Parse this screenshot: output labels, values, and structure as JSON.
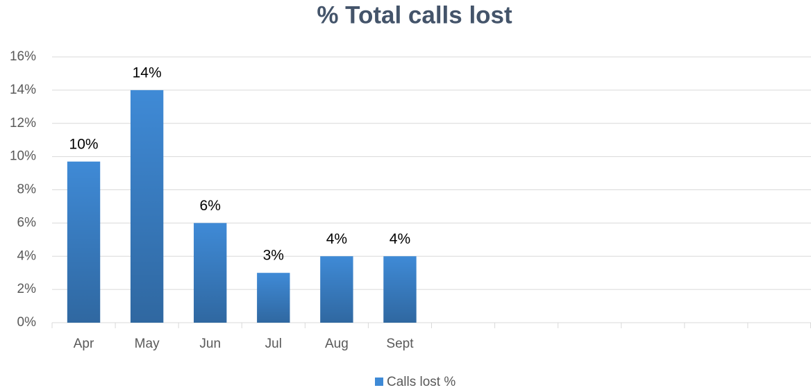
{
  "chart_data": {
    "type": "bar",
    "title": "% Total calls lost",
    "categories": [
      "Apr",
      "May",
      "Jun",
      "Jul",
      "Aug",
      "Sept",
      null,
      null,
      null,
      null,
      null,
      null
    ],
    "series": [
      {
        "name": "Calls lost %",
        "color": "#3f8ad6",
        "values": [
          9.7,
          14,
          6,
          3,
          4,
          4,
          null,
          null,
          null,
          null,
          null,
          null
        ],
        "value_labels": [
          "10%",
          "14%",
          "6%",
          "3%",
          "4%",
          "4%",
          null,
          null,
          null,
          null,
          null,
          null
        ]
      }
    ],
    "ylim": [
      0,
      16
    ],
    "yticks": [
      {
        "value": 0,
        "label": "0%"
      },
      {
        "value": 2,
        "label": "2%"
      },
      {
        "value": 4,
        "label": "4%"
      },
      {
        "value": 6,
        "label": "6%"
      },
      {
        "value": 8,
        "label": "8%"
      },
      {
        "value": 10,
        "label": "10%"
      },
      {
        "value": 12,
        "label": "12%"
      },
      {
        "value": 14,
        "label": "14%"
      },
      {
        "value": 16,
        "label": "16%"
      }
    ],
    "grid": true,
    "legend": "bottom"
  }
}
